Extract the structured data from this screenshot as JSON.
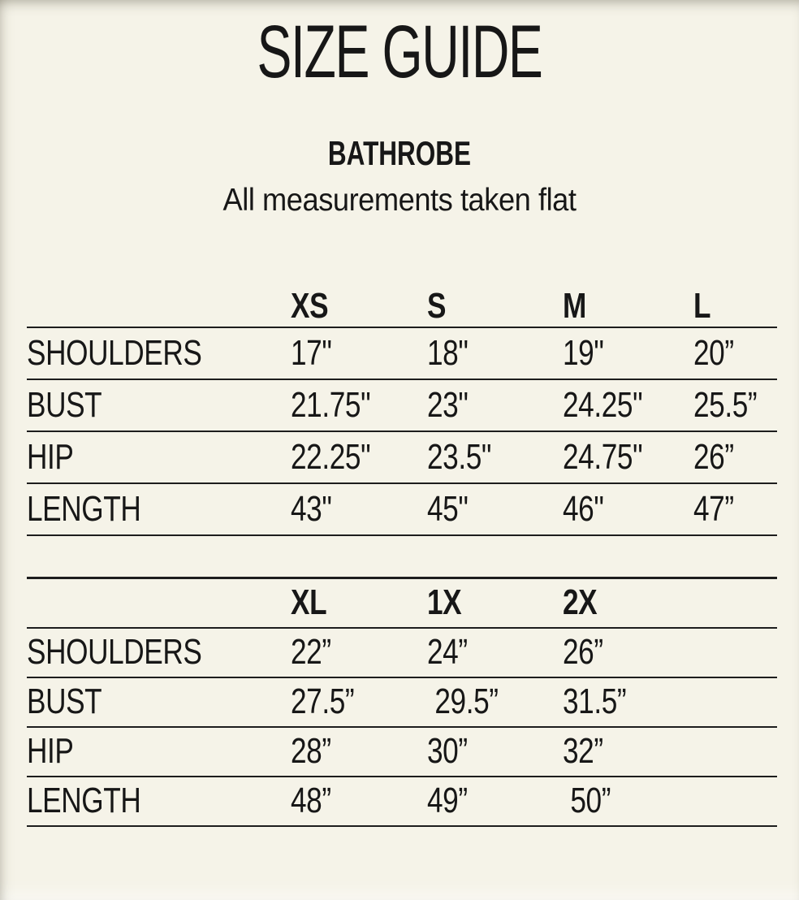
{
  "header": {
    "title": "SIZE GUIDE",
    "product": "BATHROBE",
    "note": "All measurements taken flat"
  },
  "colors": {
    "background": "#f5f3e8",
    "text": "#171717",
    "rule": "#1d1d1d"
  },
  "tables": [
    {
      "name": "size-table-xs-l",
      "columns": [
        "XS",
        "S",
        "M",
        "L"
      ],
      "rows": [
        {
          "label": "SHOULDERS",
          "values": [
            "17\"",
            "18\"",
            "19\"",
            "20”"
          ]
        },
        {
          "label": "BUST",
          "values": [
            "21.75\"",
            "23\"",
            "24.25\"",
            "25.5”"
          ]
        },
        {
          "label": "HIP",
          "values": [
            "22.25\"",
            "23.5\"",
            "24.75\"",
            "26”"
          ]
        },
        {
          "label": "LENGTH",
          "values": [
            "43\"",
            "45\"",
            "46\"",
            "47”"
          ]
        }
      ],
      "top_border": false
    },
    {
      "name": "size-table-xl-2x",
      "columns": [
        "XL",
        "1X",
        "2X"
      ],
      "rows": [
        {
          "label": "SHOULDERS",
          "values": [
            "22”",
            "24”",
            "26”"
          ]
        },
        {
          "label": "BUST",
          "values": [
            "27.5”",
            " 29.5”",
            "31.5”"
          ]
        },
        {
          "label": "HIP",
          "values": [
            "28”",
            "30”",
            "32”"
          ]
        },
        {
          "label": "LENGTH",
          "values": [
            "48”",
            "49”",
            " 50”"
          ]
        }
      ],
      "top_border": true
    }
  ]
}
